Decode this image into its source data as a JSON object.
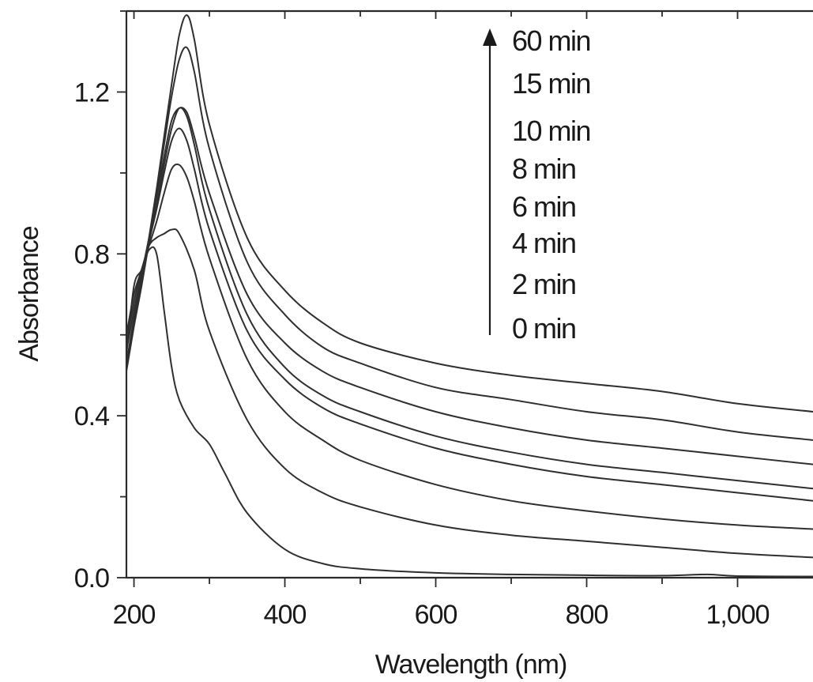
{
  "chart_data": {
    "type": "line",
    "xlabel": "Wavelength (nm)",
    "ylabel": "Absorbance",
    "xlim": [
      190,
      1100
    ],
    "ylim": [
      0.0,
      1.4
    ],
    "x_ticks": [
      200,
      400,
      600,
      800,
      1000
    ],
    "x_tick_labels": [
      "200",
      "400",
      "600",
      "800",
      "1,000"
    ],
    "y_ticks": [
      0.0,
      0.4,
      0.8,
      1.2
    ],
    "y_tick_labels": [
      "0.0",
      "0.4",
      "0.8",
      "1.2"
    ],
    "grid": false,
    "annotation": {
      "arrow": "up",
      "labels": [
        "60 min",
        "15 min",
        "10 min",
        "8 min",
        "6 min",
        "4 min",
        "2 min",
        "0 min"
      ]
    },
    "series": [
      {
        "x": [
          190,
          200,
          210,
          220,
          230,
          240,
          250,
          260,
          280,
          300,
          320,
          350,
          400,
          450,
          500,
          600,
          700,
          800,
          900,
          960,
          1000,
          1100
        ],
        "y": [
          0.55,
          0.72,
          0.76,
          0.81,
          0.8,
          0.66,
          0.52,
          0.44,
          0.37,
          0.33,
          0.26,
          0.16,
          0.07,
          0.035,
          0.022,
          0.012,
          0.008,
          0.006,
          0.005,
          0.008,
          0.004,
          0.003
        ]
      },
      {
        "x": [
          190,
          200,
          210,
          220,
          230,
          240,
          250,
          260,
          280,
          300,
          350,
          400,
          450,
          500,
          600,
          700,
          800,
          900,
          1000,
          1100
        ],
        "y": [
          0.6,
          0.7,
          0.76,
          0.82,
          0.84,
          0.85,
          0.86,
          0.85,
          0.76,
          0.61,
          0.39,
          0.27,
          0.21,
          0.175,
          0.13,
          0.105,
          0.09,
          0.075,
          0.06,
          0.05
        ]
      },
      {
        "x": [
          190,
          200,
          210,
          220,
          230,
          240,
          250,
          260,
          270,
          280,
          300,
          350,
          400,
          450,
          500,
          600,
          700,
          800,
          900,
          1000,
          1100
        ],
        "y": [
          0.58,
          0.68,
          0.76,
          0.82,
          0.88,
          0.95,
          1.01,
          1.02,
          0.99,
          0.93,
          0.79,
          0.54,
          0.41,
          0.34,
          0.29,
          0.23,
          0.19,
          0.165,
          0.145,
          0.13,
          0.12
        ]
      },
      {
        "x": [
          190,
          200,
          210,
          220,
          230,
          240,
          250,
          260,
          270,
          280,
          300,
          350,
          400,
          450,
          500,
          600,
          700,
          800,
          900,
          1000,
          1100
        ],
        "y": [
          0.53,
          0.64,
          0.74,
          0.83,
          0.91,
          1.0,
          1.08,
          1.11,
          1.08,
          1.01,
          0.86,
          0.61,
          0.49,
          0.42,
          0.38,
          0.32,
          0.28,
          0.25,
          0.23,
          0.21,
          0.19
        ]
      },
      {
        "x": [
          190,
          200,
          210,
          220,
          230,
          240,
          250,
          260,
          270,
          280,
          300,
          350,
          400,
          450,
          500,
          600,
          700,
          800,
          900,
          1000,
          1100
        ],
        "y": [
          0.52,
          0.63,
          0.73,
          0.83,
          0.92,
          1.02,
          1.11,
          1.16,
          1.14,
          1.07,
          0.91,
          0.65,
          0.52,
          0.45,
          0.41,
          0.35,
          0.31,
          0.28,
          0.26,
          0.24,
          0.22
        ]
      },
      {
        "x": [
          190,
          200,
          210,
          220,
          230,
          240,
          250,
          260,
          270,
          280,
          300,
          350,
          400,
          450,
          500,
          600,
          700,
          800,
          900,
          1000,
          1100
        ],
        "y": [
          0.56,
          0.66,
          0.75,
          0.84,
          0.94,
          1.04,
          1.13,
          1.16,
          1.15,
          1.09,
          0.95,
          0.7,
          0.58,
          0.51,
          0.47,
          0.41,
          0.37,
          0.34,
          0.32,
          0.3,
          0.28
        ]
      },
      {
        "x": [
          190,
          200,
          210,
          220,
          230,
          240,
          250,
          260,
          270,
          280,
          300,
          350,
          400,
          450,
          500,
          600,
          700,
          800,
          900,
          1000,
          1100
        ],
        "y": [
          0.51,
          0.62,
          0.72,
          0.83,
          0.95,
          1.07,
          1.19,
          1.28,
          1.31,
          1.25,
          1.06,
          0.78,
          0.65,
          0.57,
          0.53,
          0.47,
          0.44,
          0.41,
          0.39,
          0.36,
          0.34
        ]
      },
      {
        "x": [
          190,
          200,
          210,
          220,
          230,
          240,
          250,
          260,
          270,
          280,
          300,
          350,
          400,
          450,
          500,
          600,
          700,
          800,
          900,
          1000,
          1100
        ],
        "y": [
          0.52,
          0.63,
          0.73,
          0.84,
          0.96,
          1.09,
          1.22,
          1.34,
          1.39,
          1.33,
          1.12,
          0.84,
          0.71,
          0.63,
          0.58,
          0.53,
          0.5,
          0.48,
          0.46,
          0.43,
          0.41
        ]
      }
    ]
  }
}
